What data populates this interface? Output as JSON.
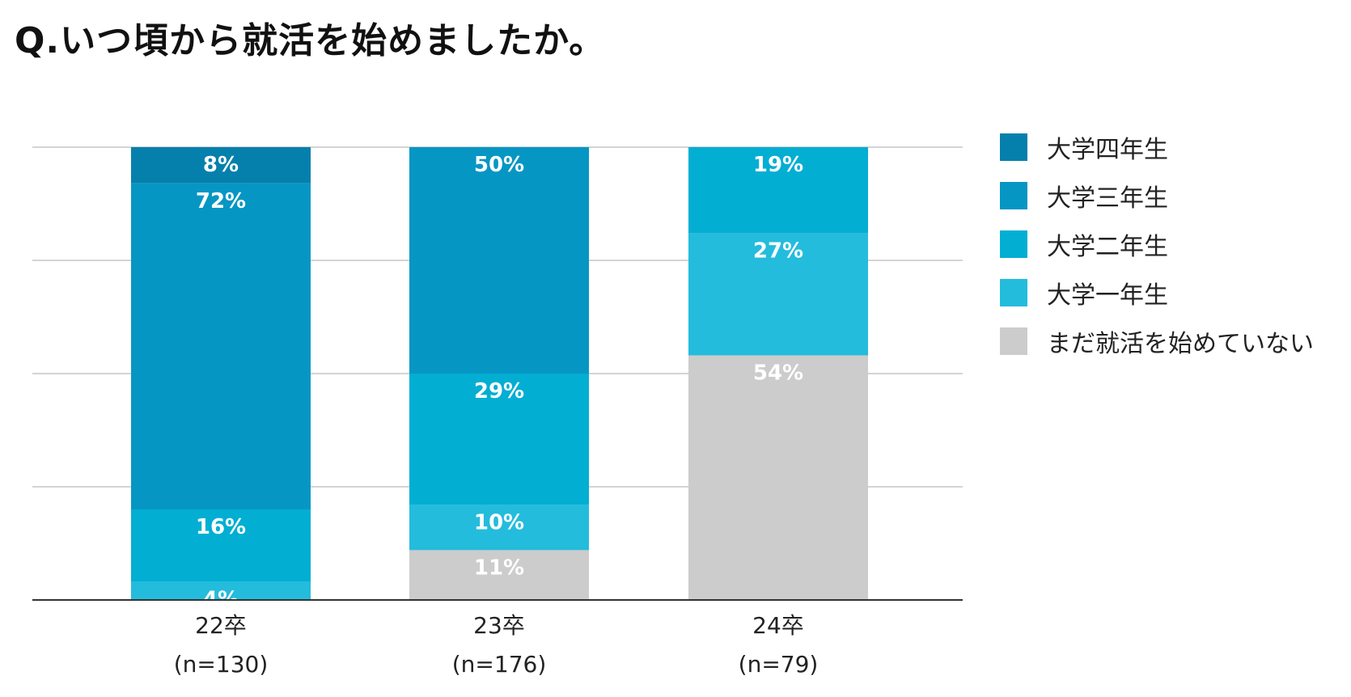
{
  "title": "Q.いつ頃から就活を始めましたか。",
  "chart_data": {
    "type": "bar",
    "stacked": true,
    "normalized_percent": true,
    "categories": [
      "22卒",
      "23卒",
      "24卒"
    ],
    "category_sublabels": [
      "(n=130)",
      "(n=176)",
      "(n=79)"
    ],
    "series": [
      {
        "name": "大学四年生",
        "color": "#0580AC",
        "values": [
          8,
          0,
          0
        ]
      },
      {
        "name": "大学三年生",
        "color": "#0696C4",
        "values": [
          72,
          50,
          0
        ]
      },
      {
        "name": "大学二年生",
        "color": "#03AED3",
        "values": [
          16,
          29,
          19
        ]
      },
      {
        "name": "大学一年生",
        "color": "#24BCDC",
        "values": [
          4,
          10,
          27
        ]
      },
      {
        "name": "まだ就活を始めていない",
        "color": "#CCCCCC",
        "values": [
          0,
          11,
          54
        ]
      }
    ],
    "ylim": [
      0,
      100
    ],
    "grid": true,
    "legend_position": "right"
  }
}
